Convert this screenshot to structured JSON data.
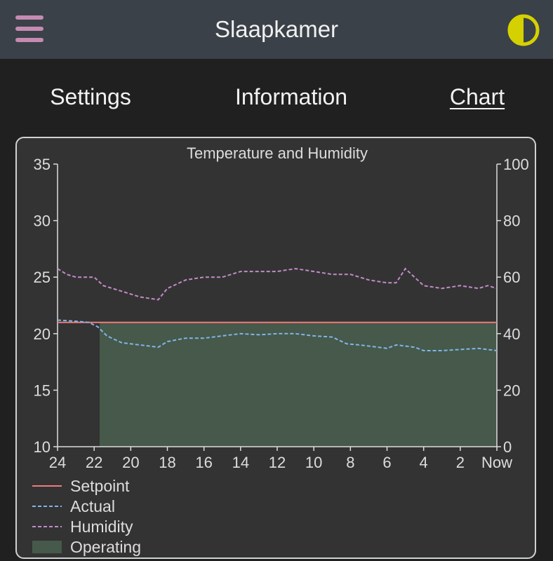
{
  "header": {
    "title": "Slaapkamer",
    "menu_icon": "hamburger-icon",
    "theme_icon": "half-circle-contrast-icon",
    "accent_color": "#c58bb2",
    "theme_color": "#d5d100"
  },
  "tabs": [
    {
      "label": "Settings",
      "active": false
    },
    {
      "label": "Information",
      "active": false
    },
    {
      "label": "Chart",
      "active": true
    }
  ],
  "chart_data": {
    "type": "line",
    "title": "Temperature and Humidity",
    "x_ticks": [
      "24",
      "22",
      "20",
      "18",
      "16",
      "14",
      "12",
      "10",
      "8",
      "6",
      "4",
      "2",
      "Now"
    ],
    "xlim": [
      24,
      0
    ],
    "ylim_left": [
      10,
      35
    ],
    "ylim_right": [
      0,
      100
    ],
    "y_ticks_left": [
      10,
      15,
      20,
      25,
      30,
      35
    ],
    "y_ticks_right": [
      0,
      20,
      40,
      60,
      80,
      100
    ],
    "grid": false,
    "legend": "bottom-left",
    "series": [
      {
        "name": "Setpoint",
        "axis": "left",
        "style": "solid",
        "color": "#f07a7a",
        "x": [
          24,
          0
        ],
        "y": [
          21,
          21
        ]
      },
      {
        "name": "Actual",
        "axis": "left",
        "style": "dashed",
        "color": "#7fb6ea",
        "x": [
          24,
          23,
          22.3,
          21.8,
          21.3,
          20.5,
          19.5,
          18.5,
          18,
          17,
          16,
          15,
          14,
          13,
          12,
          11,
          10,
          9,
          8.2,
          7.5,
          7,
          6.5,
          6,
          5.5,
          5,
          4.5,
          4,
          3,
          2,
          1,
          0.5,
          0
        ],
        "y": [
          21.2,
          21.1,
          21.0,
          20.6,
          19.8,
          19.2,
          19.0,
          18.8,
          19.3,
          19.6,
          19.6,
          19.8,
          20.0,
          19.9,
          20.0,
          20.0,
          19.8,
          19.7,
          19.1,
          19.0,
          18.9,
          18.8,
          18.7,
          19.0,
          18.9,
          18.8,
          18.5,
          18.5,
          18.6,
          18.7,
          18.6,
          18.5
        ]
      },
      {
        "name": "Humidity",
        "axis": "right",
        "style": "dashed",
        "color": "#c38bc8",
        "x": [
          24,
          23.5,
          23,
          22,
          21.5,
          20.5,
          19.5,
          18.5,
          18,
          17,
          16,
          15,
          14,
          13,
          12,
          11,
          10,
          9,
          8,
          7,
          6,
          5.5,
          5.2,
          5,
          4.5,
          4,
          3,
          2,
          1,
          0.5,
          0
        ],
        "y": [
          63,
          61,
          60,
          60,
          57,
          55,
          53,
          52,
          56,
          59,
          60,
          60,
          62,
          62,
          62,
          63,
          62,
          61,
          61,
          59,
          58,
          58,
          61,
          63,
          60,
          57,
          56,
          57,
          56,
          57,
          56
        ]
      },
      {
        "name": "Operating",
        "axis": "left",
        "style": "area",
        "color": "#46594a",
        "x_ranges": [
          [
            21.7,
            0
          ]
        ],
        "level": 21
      }
    ]
  }
}
